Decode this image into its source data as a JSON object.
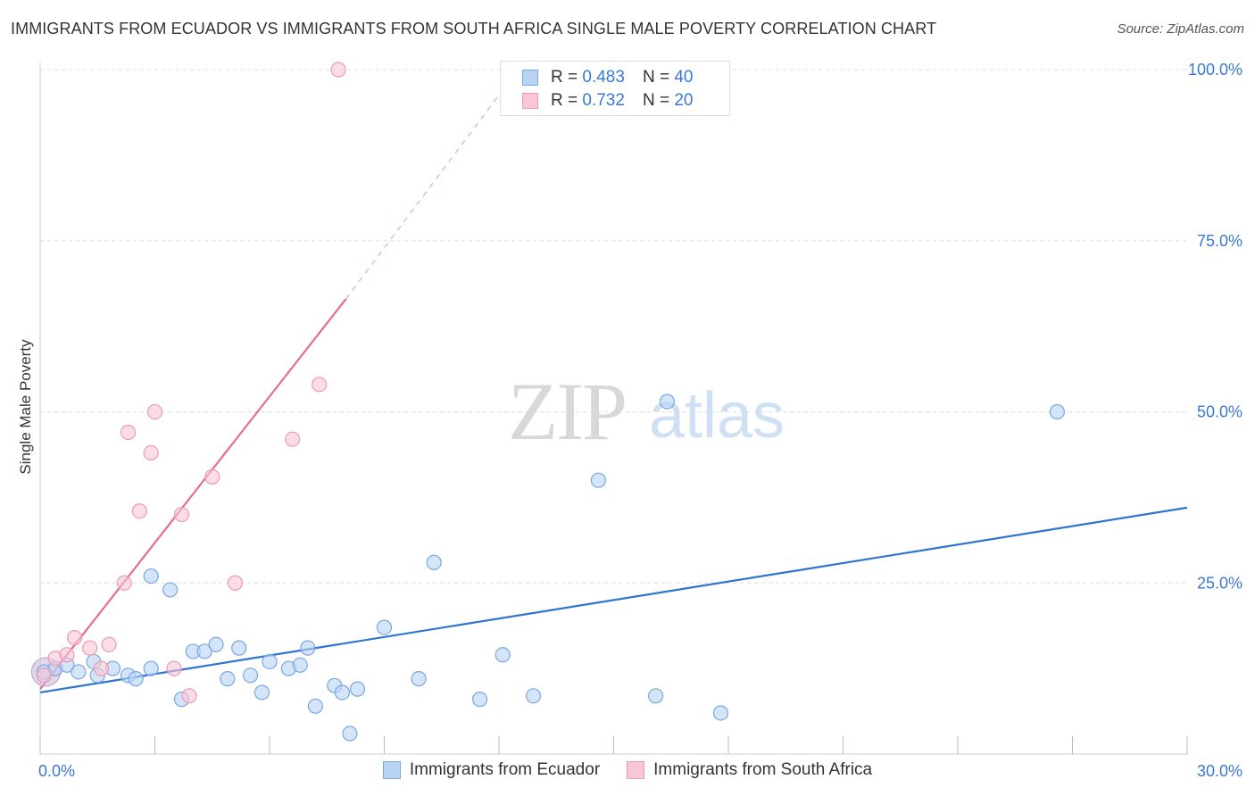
{
  "title": "IMMIGRANTS FROM ECUADOR VS IMMIGRANTS FROM SOUTH AFRICA SINGLE MALE POVERTY CORRELATION CHART",
  "source": "Source: ZipAtlas.com",
  "watermark": {
    "zip": "ZIP",
    "atlas": "atlas"
  },
  "colors": {
    "ecuador_fill": "#b9d3f5",
    "ecuador_stroke": "#7aa7e0",
    "ecuador_line": "#2e74d1",
    "southafrica_fill": "#f9c6d5",
    "southafrica_stroke": "#ee9ab3",
    "southafrica_line": "#e46b95",
    "axis_text": "#3a78d4",
    "grid": "#dddddd"
  },
  "legend": {
    "rows": [
      {
        "r_label": "R = ",
        "r_value": "0.483",
        "n_label": "N = ",
        "n_value": "40"
      },
      {
        "r_label": "R = ",
        "r_value": "0.732",
        "n_label": "N = ",
        "n_value": "20"
      }
    ]
  },
  "chart_data": {
    "type": "scatter",
    "title": "IMMIGRANTS FROM ECUADOR VS IMMIGRANTS FROM SOUTH AFRICA SINGLE MALE POVERTY CORRELATION CHART",
    "xlabel": "",
    "ylabel": "Single Male Poverty",
    "xlim": [
      0,
      30
    ],
    "ylim": [
      0,
      103
    ],
    "x_tick_labels": [
      {
        "value": 0,
        "label": "0.0%"
      },
      {
        "value": 30,
        "label": "30.0%"
      }
    ],
    "y_tick_labels": [
      {
        "value": 25,
        "label": "25.0%"
      },
      {
        "value": 50,
        "label": "50.0%"
      },
      {
        "value": 75,
        "label": "75.0%"
      },
      {
        "value": 100,
        "label": "100.0%"
      }
    ],
    "grid": true,
    "legend_position": "top-center",
    "series": [
      {
        "name": "Immigrants from Ecuador",
        "R": 0.483,
        "N": 40,
        "points": [
          [
            0.1,
            12.0
          ],
          [
            0.4,
            12.5
          ],
          [
            0.7,
            13.0
          ],
          [
            1.0,
            12.0
          ],
          [
            1.5,
            11.5
          ],
          [
            1.4,
            13.5
          ],
          [
            1.9,
            12.5
          ],
          [
            2.3,
            11.5
          ],
          [
            2.5,
            11.0
          ],
          [
            2.9,
            12.5
          ],
          [
            2.9,
            26.0
          ],
          [
            3.4,
            24.0
          ],
          [
            3.7,
            8.0
          ],
          [
            4.0,
            15.0
          ],
          [
            4.3,
            15.0
          ],
          [
            4.6,
            16.0
          ],
          [
            4.9,
            11.0
          ],
          [
            5.2,
            15.5
          ],
          [
            5.5,
            11.5
          ],
          [
            5.8,
            9.0
          ],
          [
            6.0,
            13.5
          ],
          [
            6.5,
            12.5
          ],
          [
            6.8,
            13.0
          ],
          [
            7.0,
            15.5
          ],
          [
            7.2,
            7.0
          ],
          [
            7.7,
            10.0
          ],
          [
            7.9,
            9.0
          ],
          [
            8.1,
            3.0
          ],
          [
            8.3,
            9.5
          ],
          [
            9.0,
            18.5
          ],
          [
            9.9,
            11.0
          ],
          [
            10.3,
            28.0
          ],
          [
            11.5,
            8.0
          ],
          [
            12.1,
            14.5
          ],
          [
            12.9,
            8.5
          ],
          [
            14.6,
            40.0
          ],
          [
            16.1,
            8.5
          ],
          [
            16.4,
            51.5
          ],
          [
            17.8,
            6.0
          ],
          [
            26.6,
            50.0
          ]
        ],
        "trend": {
          "x": [
            0,
            30
          ],
          "y": [
            9.0,
            36.0
          ]
        }
      },
      {
        "name": "Immigrants from South Africa",
        "R": 0.732,
        "N": 20,
        "points": [
          [
            0.1,
            11.5
          ],
          [
            0.4,
            14.0
          ],
          [
            0.7,
            14.5
          ],
          [
            0.9,
            17.0
          ],
          [
            1.3,
            15.5
          ],
          [
            1.6,
            12.5
          ],
          [
            1.8,
            16.0
          ],
          [
            2.2,
            25.0
          ],
          [
            2.3,
            47.0
          ],
          [
            2.6,
            35.5
          ],
          [
            2.9,
            44.0
          ],
          [
            3.0,
            50.0
          ],
          [
            3.5,
            12.5
          ],
          [
            3.7,
            35.0
          ],
          [
            3.9,
            8.5
          ],
          [
            4.5,
            40.5
          ],
          [
            5.1,
            25.0
          ],
          [
            6.6,
            46.0
          ],
          [
            7.3,
            54.0
          ],
          [
            7.8,
            100.0
          ]
        ],
        "trend": {
          "x": [
            0,
            8.0
          ],
          "y": [
            9.5,
            66.5
          ]
        },
        "trend_dashed": {
          "x": [
            8.0,
            12.5
          ],
          "y": [
            66.5,
            100.0
          ]
        }
      }
    ]
  },
  "bottom_legend": [
    "Immigrants from Ecuador",
    "Immigrants from South Africa"
  ]
}
